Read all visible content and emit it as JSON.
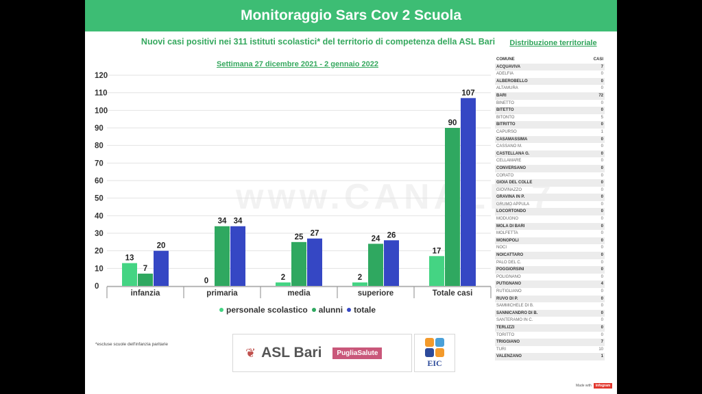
{
  "header": {
    "title": "Monitoraggio Sars Cov 2 Scuola",
    "subtitle": "Nuovi casi positivi nei 311 istituti scolastici* del territorio di competenza della ASL Bari",
    "week": "Settimana 27 dicembre 2021 - 2 gennaio 2022",
    "distribution_title": "Distribuzione territoriale"
  },
  "chart_data": {
    "type": "bar",
    "categories": [
      "infanzia",
      "primaria",
      "media",
      "superiore",
      "Totale casi"
    ],
    "series": [
      {
        "name": "personale scolastico",
        "color": "#44d483",
        "values": [
          13,
          0,
          2,
          2,
          17
        ]
      },
      {
        "name": "alunni",
        "color": "#2fa860",
        "values": [
          7,
          34,
          25,
          24,
          90
        ]
      },
      {
        "name": "totale",
        "color": "#3547c4",
        "values": [
          20,
          34,
          27,
          26,
          107
        ]
      }
    ],
    "ylim": [
      0,
      120
    ],
    "yticks": [
      0,
      10,
      20,
      30,
      40,
      50,
      60,
      70,
      80,
      90,
      100,
      110,
      120
    ],
    "legend": "bottom"
  },
  "watermark": "www.CANALE 7",
  "footnote": "*escluse scuole dell'infanzia paritarie",
  "logos": {
    "asl": "ASL Bari",
    "puglia": "PugliaSalute",
    "eic": "EIC"
  },
  "table": {
    "headers": [
      "COMUNE",
      "CASI"
    ],
    "rows": [
      [
        "ACQUAVIVA",
        "7"
      ],
      [
        "ADELFIA",
        "0"
      ],
      [
        "ALBEROBELLO",
        "0"
      ],
      [
        "ALTAMURA",
        "0"
      ],
      [
        "BARI",
        "72"
      ],
      [
        "BINETTO",
        "0"
      ],
      [
        "BITETTO",
        "0"
      ],
      [
        "BITONTO",
        "5"
      ],
      [
        "BITRITTO",
        "0"
      ],
      [
        "CAPURSO",
        "1"
      ],
      [
        "CASAMASSIMA",
        "0"
      ],
      [
        "CASSANO M.",
        "0"
      ],
      [
        "CASTELLANA G.",
        "0"
      ],
      [
        "CELLAMARE",
        "0"
      ],
      [
        "CONVERSANO",
        "0"
      ],
      [
        "CORATO",
        "0"
      ],
      [
        "GIOIA DEL COLLE",
        "0"
      ],
      [
        "GIOVINAZZO",
        "0"
      ],
      [
        "GRAVINA IN P.",
        "0"
      ],
      [
        "GRUMO APPULA",
        "0"
      ],
      [
        "LOCORTONDO",
        "0"
      ],
      [
        "MODUGNO",
        "0"
      ],
      [
        "MOLA DI BARI",
        "0"
      ],
      [
        "MOLFETTA",
        "0"
      ],
      [
        "MONOPOLI",
        "0"
      ],
      [
        "NOCI",
        "0"
      ],
      [
        "NOICATTARO",
        "0"
      ],
      [
        "PALO DEL C.",
        "0"
      ],
      [
        "POGGIORSINI",
        "0"
      ],
      [
        "POLIGNANO",
        "0"
      ],
      [
        "PUTIGNANO",
        "4"
      ],
      [
        "RUTIGLIANO",
        "0"
      ],
      [
        "RUVO DI P.",
        "0"
      ],
      [
        "SAMMICHELE DI B.",
        "0"
      ],
      [
        "SANNICANDRO DI B.",
        "0"
      ],
      [
        "SANTERAMO IN C.",
        "0"
      ],
      [
        "TERLIZZI",
        "0"
      ],
      [
        "TORITTO",
        "0"
      ],
      [
        "TRIGGIANO",
        "7"
      ],
      [
        "TURI",
        "10"
      ],
      [
        "VALENZANO",
        "1"
      ]
    ]
  },
  "made_with": {
    "label": "Made with",
    "brand": "infogram"
  }
}
